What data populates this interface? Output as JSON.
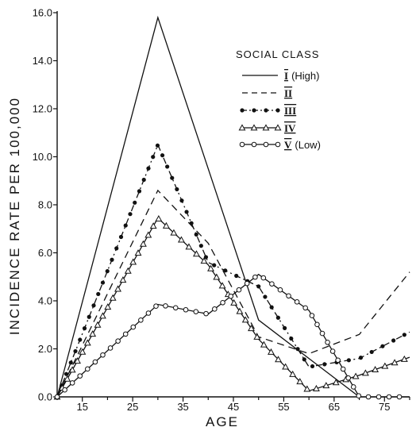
{
  "chart_data": {
    "type": "line",
    "title": "",
    "xlabel": "AGE",
    "ylabel": "INCIDENCE RATE PER 100,000",
    "xlim": [
      10,
      80
    ],
    "ylim": [
      0,
      16
    ],
    "xticks": [
      15,
      25,
      35,
      45,
      55,
      65,
      75
    ],
    "xtick_labels": [
      "15",
      "25",
      "35",
      "45",
      "55",
      "65",
      "75"
    ],
    "yticks": [
      0,
      2,
      4,
      6,
      8,
      10,
      12,
      14,
      16
    ],
    "ytick_labels": [
      "0.0",
      "2.0",
      "4.0",
      "6.0",
      "8.0",
      "10.0",
      "12.0",
      "14.0",
      "16.0"
    ],
    "legend": {
      "title": "SOCIAL CLASS",
      "placement": "top-right"
    },
    "series": [
      {
        "name": "I (High)",
        "numeral": "I",
        "suffix": "(High)",
        "style": "solid",
        "marker": "none",
        "x": [
          10,
          30,
          50,
          70
        ],
        "y": [
          0.0,
          15.8,
          3.2,
          0.0
        ]
      },
      {
        "name": "II",
        "numeral": "II",
        "suffix": "",
        "style": "dashed",
        "marker": "none",
        "x": [
          10,
          30,
          40,
          50,
          60,
          70,
          80
        ],
        "y": [
          0.0,
          8.6,
          6.4,
          2.5,
          1.8,
          2.6,
          5.2
        ]
      },
      {
        "name": "III",
        "numeral": "III",
        "suffix": "",
        "style": "dashdot",
        "marker": "dot",
        "x": [
          10,
          30,
          40,
          50,
          60,
          70,
          80
        ],
        "y": [
          0.0,
          10.5,
          5.6,
          4.6,
          1.25,
          1.6,
          2.7
        ]
      },
      {
        "name": "IV",
        "numeral": "IV",
        "suffix": "",
        "style": "solid",
        "marker": "triangle",
        "x": [
          10,
          30,
          40,
          50,
          60,
          70,
          80
        ],
        "y": [
          0.0,
          7.45,
          5.5,
          2.4,
          0.25,
          0.9,
          1.65
        ]
      },
      {
        "name": "V (Low)",
        "numeral": "V",
        "suffix": "(Low)",
        "style": "solid",
        "marker": "circle",
        "x": [
          10,
          30,
          40,
          50,
          60,
          70,
          80
        ],
        "y": [
          0.0,
          3.85,
          3.45,
          5.1,
          3.6,
          0.0,
          0.0
        ]
      }
    ]
  }
}
